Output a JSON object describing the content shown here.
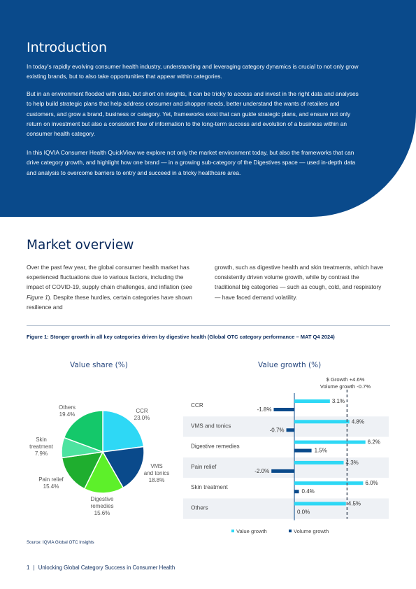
{
  "intro": {
    "title": "Introduction",
    "paragraphs": [
      "In today’s rapidly evolving consumer health industry, understanding and leveraging category dynamics is crucial to not only grow existing brands, but to also take opportunities that appear within categories.",
      "But in an environment flooded with data, but short on insights, it can be tricky to access and invest in the right data and analyses to help build strategic plans that help address consumer and shopper needs, better understand the wants of retailers and customers, and grow a brand, business or category. Yet, frameworks exist that can guide strategic plans, and ensure not only return on investment but also a consistent flow of information to the long-term success and evolution of a business within an consumer health category.",
      "In this IQVIA Consumer Health QuickView we explore not only the market environment today, but also the frameworks that can drive category growth, and highlight how one brand — in a growing sub-category of the Digestives space — used in-depth data and analysis to overcome barriers to entry and succeed in a tricky healthcare area."
    ]
  },
  "market": {
    "title": "Market overview",
    "col1_a": "Over the past few year, the global consumer health market has experienced fluctuations due to various factors, including the impact of COVID-19, supply chain challenges, and inflation (",
    "col1_em": "see Figure 1",
    "col1_b": "). Despite these hurdles, certain categories have shown resilience and",
    "col2": "growth, such as digestive health and skin treatments, which have consistently driven volume growth, while by contrast the traditional big categories — such as cough, cold, and respiratory — have faced demand volatility."
  },
  "figure": {
    "caption": "Figure 1: Stonger growth in all key categories driven by digestive health (Global OTC category performance – MAT Q4 2024)",
    "source": "Source: IQVIA Global OTC Insights"
  },
  "chart_data": [
    {
      "type": "pie",
      "title": "Value share (%)",
      "slices": [
        {
          "name": "CCR",
          "value": 23.0,
          "label": "23.0%",
          "color": "#2ed8f5"
        },
        {
          "name": "VMS and tonics",
          "value": 18.8,
          "label": "18.8%",
          "color": "#0a4a8b"
        },
        {
          "name": "Digestive remedies",
          "value": 15.6,
          "label": "15.6%",
          "color": "#5df02a"
        },
        {
          "name": "Pain relief",
          "value": 15.4,
          "label": "15.4%",
          "color": "#1fae2f"
        },
        {
          "name": "Skin treatment",
          "value": 7.9,
          "label": "7.9%",
          "color": "#4de3a0"
        },
        {
          "name": "Others",
          "value": 19.4,
          "label": "19.4%",
          "color": "#14c86a"
        }
      ]
    },
    {
      "type": "bar",
      "title": "Value growth (%)",
      "categories": [
        "CCR",
        "VMS and tonics",
        "Digestive remedies",
        "Pain relief",
        "Skin treatment",
        "Others"
      ],
      "series": [
        {
          "name": "Value growth",
          "color": "#2ed8f5",
          "values": [
            3.1,
            4.8,
            6.2,
            4.3,
            6.0,
            4.5
          ],
          "labels": [
            "3.1%",
            "4.8%",
            "6.2%",
            "4.3%",
            "6.0%",
            "4.5%"
          ]
        },
        {
          "name": "Volume growth",
          "color": "#0a4a8b",
          "values": [
            -1.8,
            -0.7,
            1.5,
            -2.0,
            0.4,
            0.0
          ],
          "labels": [
            "-1.8%",
            "-0.7%",
            "1.5%",
            "-2.0%",
            "0.4%",
            "0.0%"
          ]
        }
      ],
      "reference": {
        "value": 4.6,
        "label1": "$ Growth +4.6%",
        "label2": "Volume growth -0.7%"
      },
      "legend": [
        "Value growth",
        "Volume growth"
      ]
    }
  ],
  "footer": {
    "page": "1",
    "separator": "|",
    "text": "Unlocking Global Category Success in Consumer Health"
  }
}
